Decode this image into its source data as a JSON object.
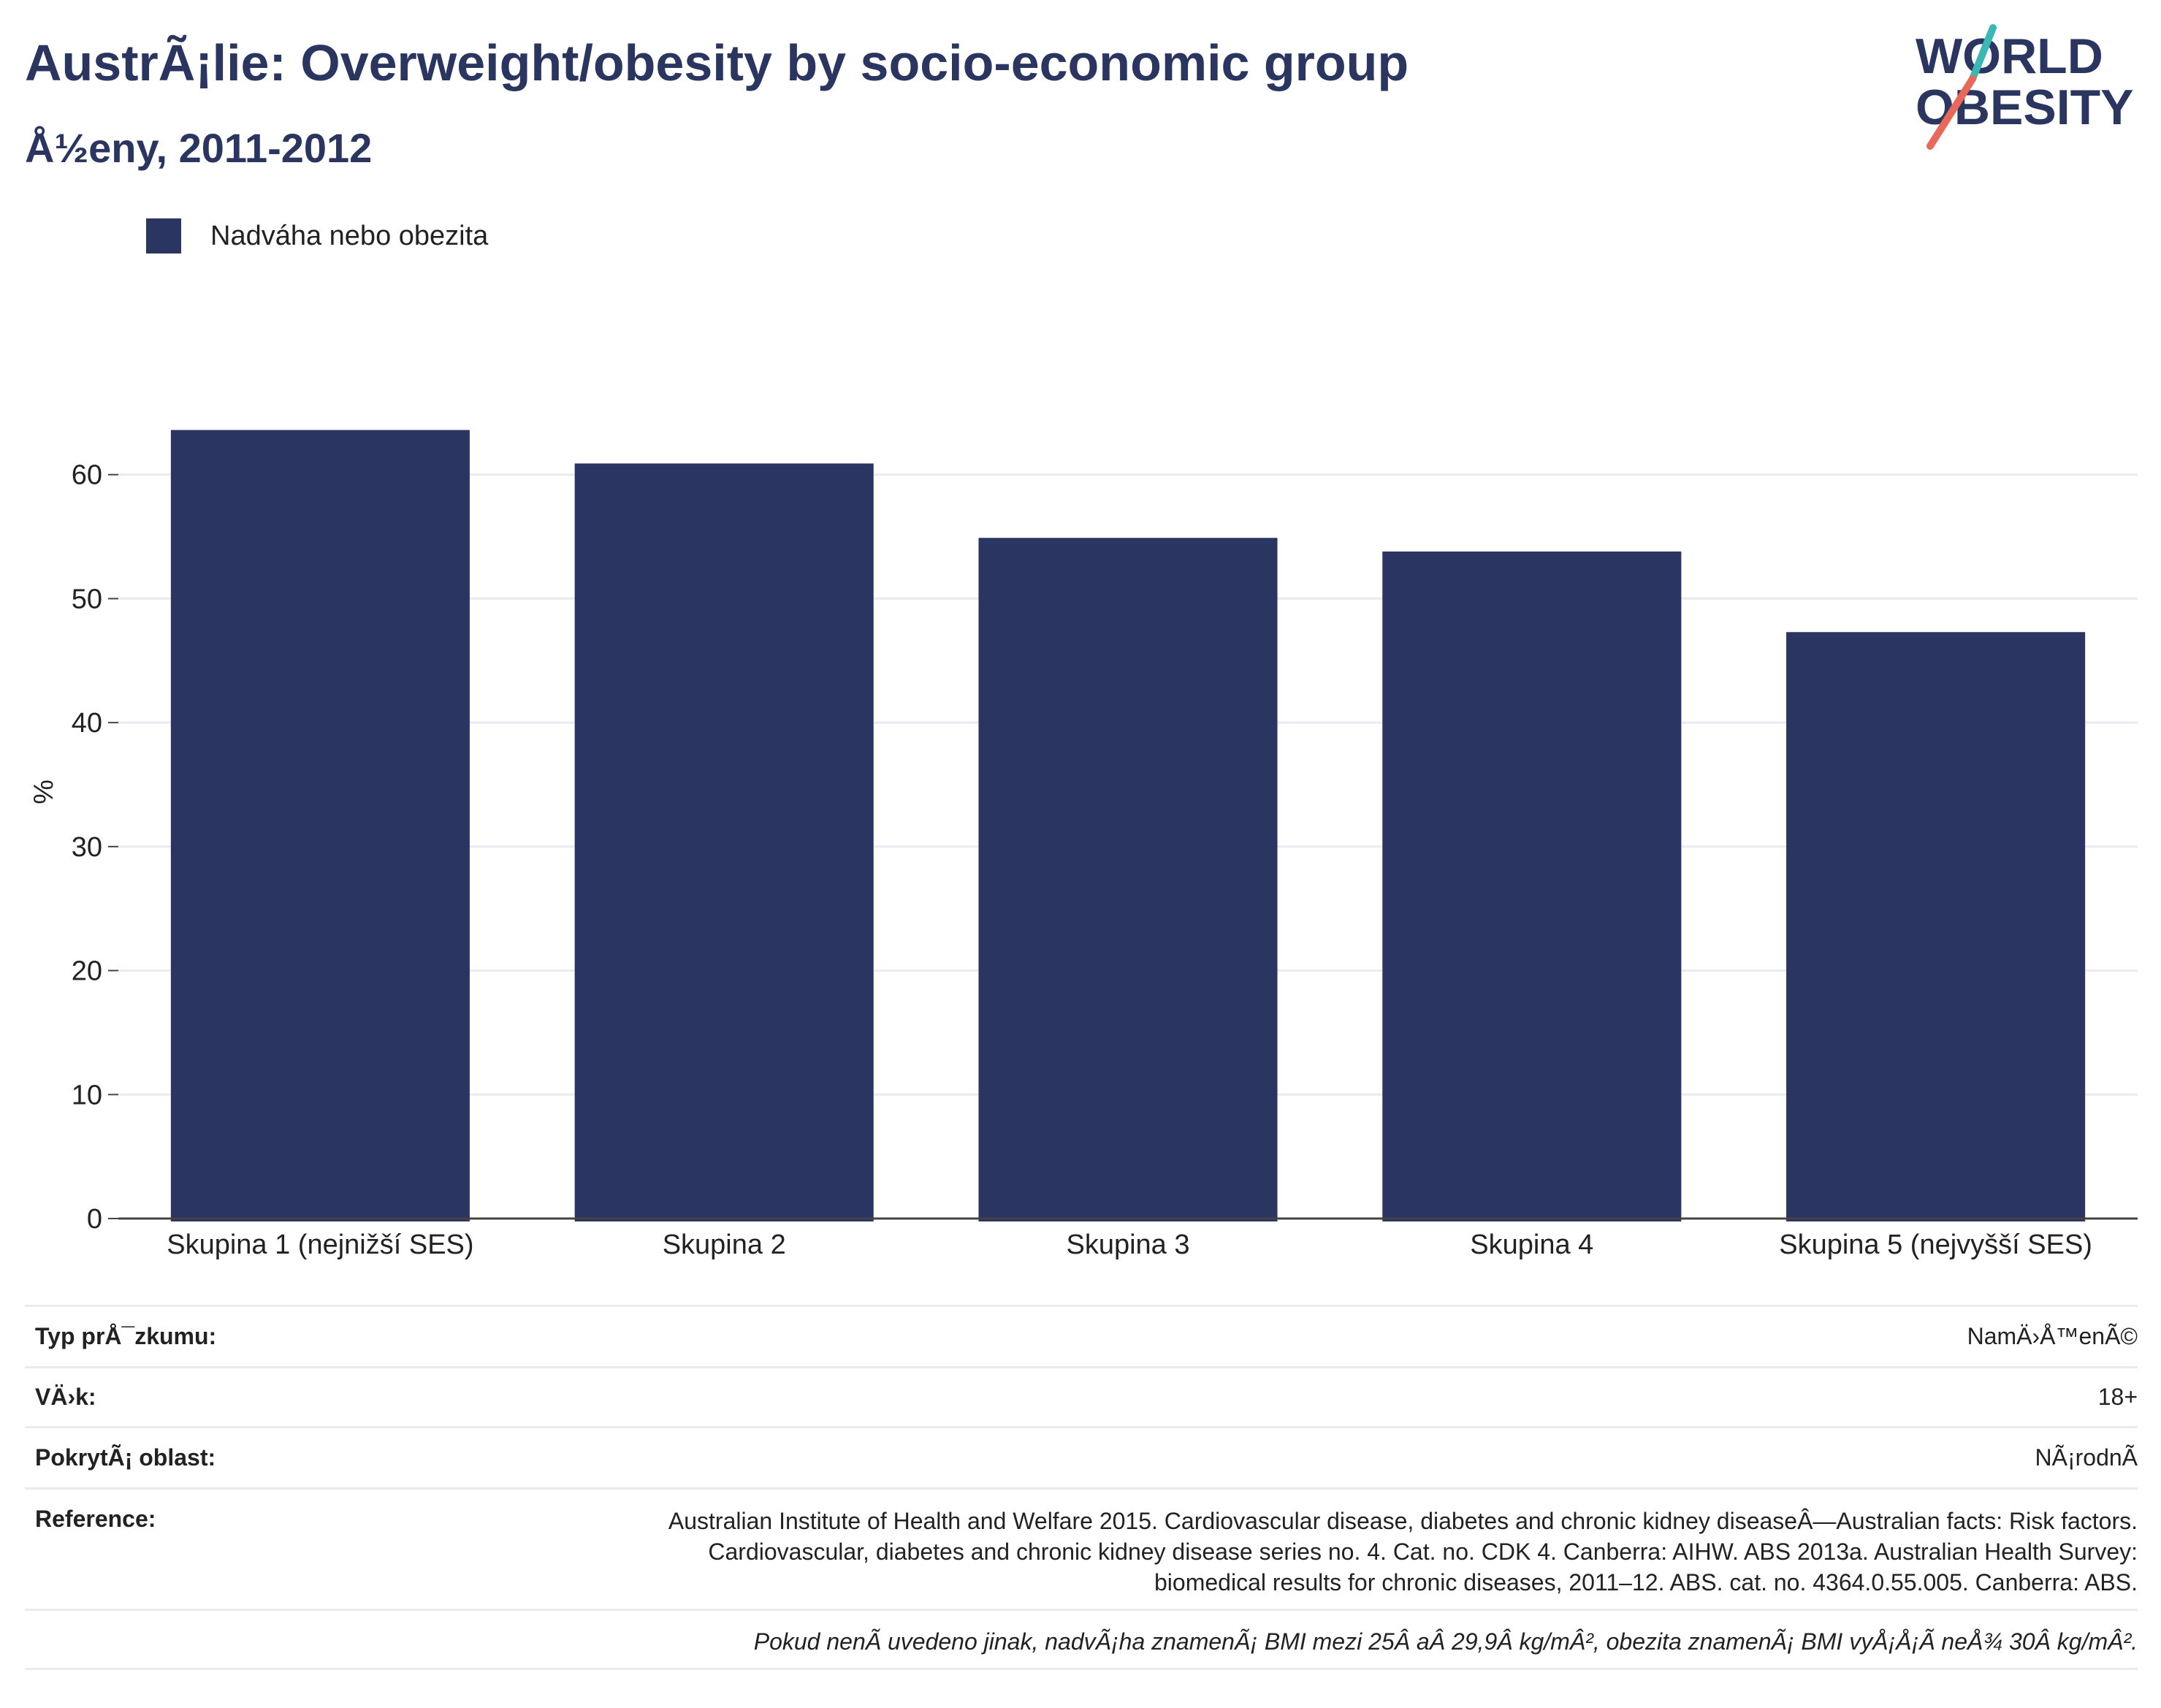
{
  "header": {
    "title": "AustrÃ¡lie: Overweight/obesity by socio-economic group",
    "subtitle": "Å½eny, 2011-2012"
  },
  "logo": {
    "line1": "WORLD",
    "line2": "OBESITY",
    "colors": {
      "text": "#2a3560",
      "slash_teal": "#3bb8b4",
      "slash_coral": "#e8685a"
    }
  },
  "legend": {
    "label": "Nadváha nebo obezita",
    "color": "#2a3562"
  },
  "chart_data": {
    "type": "bar",
    "categories": [
      "Skupina 1 (nejnižší SES)",
      "Skupina 2",
      "Skupina 3",
      "Skupina 4",
      "Skupina 5 (nejvyšší SES)"
    ],
    "series": [
      {
        "name": "Nadváha nebo obezita",
        "values": [
          63.6,
          60.9,
          54.9,
          53.8,
          47.3
        ],
        "color": "#2a3562"
      }
    ],
    "xlabel": "",
    "ylabel": "%",
    "ylim": [
      0,
      70
    ],
    "yticks": [
      0,
      10,
      20,
      30,
      40,
      50,
      60
    ],
    "grid": true,
    "legend_position": "top-left"
  },
  "meta": {
    "rows": [
      {
        "key": "Typ prÅ¯zkumu:",
        "value": "NamÄ›Å™enÃ©"
      },
      {
        "key": "VÄ›k:",
        "value": "18+"
      },
      {
        "key": "PokrytÃ¡ oblast:",
        "value": "NÃ¡rodnÃ"
      },
      {
        "key": "Reference:",
        "value": "Australian Institute of Health and Welfare 2015. Cardiovascular disease, diabetes and chronic kidney diseaseÂ—Australian facts: Risk factors. Cardiovascular, diabetes and chronic kidney disease series no. 4. Cat. no. CDK 4. Canberra: AIHW. ABS 2013a. Australian Health Survey: biomedical results for chronic diseases, 2011–12. ABS. cat. no. 4364.0.55.005. Canberra: ABS."
      }
    ],
    "note": "Pokud nenÃ uvedeno jinak, nadvÃ¡ha znamenÃ¡ BMI mezi 25Â aÂ 29,9Â kg/mÂ², obezita znamenÃ¡ BMI vyÅ¡Å¡Ã neÅ¾ 30Â kg/mÂ²."
  }
}
